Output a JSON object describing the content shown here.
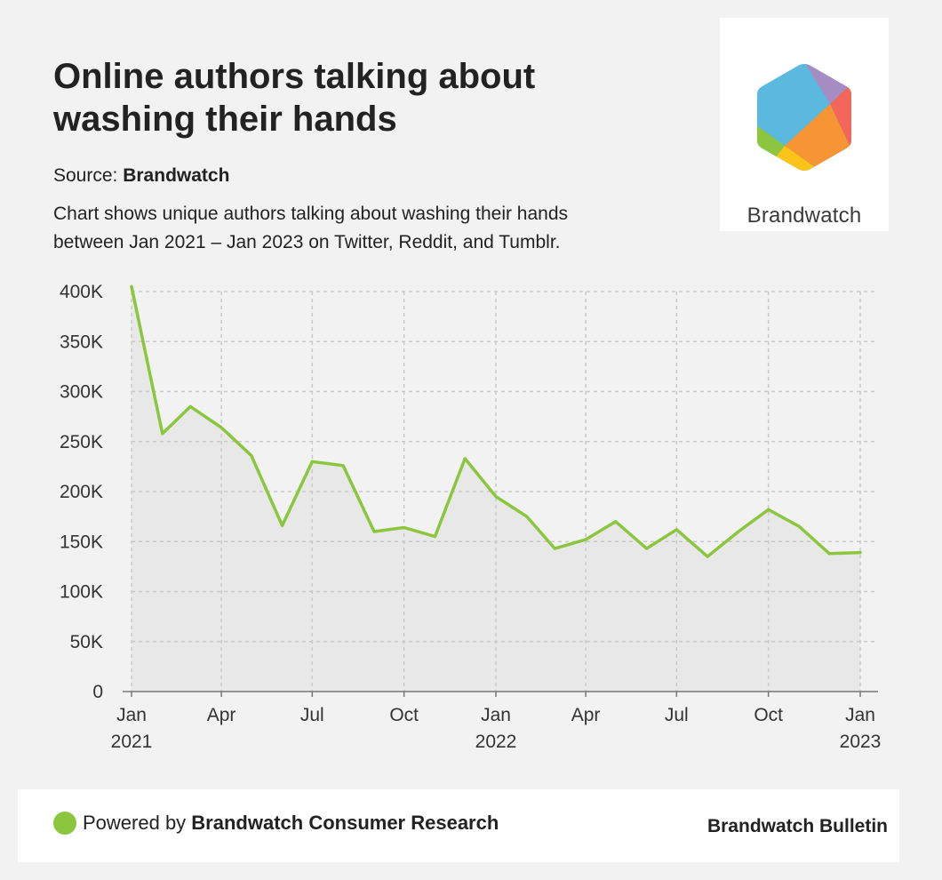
{
  "header": {
    "title_line1": "Online authors talking about",
    "title_line2": "washing their hands",
    "source_prefix": "Source: ",
    "source_name": "Brandwatch",
    "description_line1": "Chart shows unique authors talking about washing their hands",
    "description_line2": "between Jan 2021 – Jan 2023 on Twitter, Reddit, and Tumblr."
  },
  "logo": {
    "wordmark": "Brandwatch",
    "colors": [
      "#5bb8de",
      "#a58dc4",
      "#f2665b",
      "#f79433",
      "#fcc419",
      "#8cc63f"
    ]
  },
  "chart_data": {
    "type": "area",
    "y_ticks": [
      "400K",
      "350K",
      "300K",
      "250K",
      "200K",
      "150K",
      "100K",
      "50K",
      "0"
    ],
    "y_tick_values": [
      400000,
      350000,
      300000,
      250000,
      200000,
      150000,
      100000,
      50000,
      0
    ],
    "ylim": [
      0,
      400000
    ],
    "x_ticks": [
      {
        "month": "Jan",
        "year": "2021"
      },
      {
        "month": "Apr",
        "year": ""
      },
      {
        "month": "Jul",
        "year": ""
      },
      {
        "month": "Oct",
        "year": ""
      },
      {
        "month": "Jan",
        "year": "2022"
      },
      {
        "month": "Apr",
        "year": ""
      },
      {
        "month": "Jul",
        "year": ""
      },
      {
        "month": "Oct",
        "year": ""
      },
      {
        "month": "Jan",
        "year": "2023"
      }
    ],
    "x_tick_dates": [
      "2021-01-01",
      "2021-04-01",
      "2021-07-01",
      "2021-10-01",
      "2022-01-01",
      "2022-04-01",
      "2022-07-01",
      "2022-10-01",
      "2023-01-01"
    ],
    "xlim": [
      "2021-01-01",
      "2023-01-01"
    ],
    "x": [
      "2021-01-01",
      "2021-02-01",
      "2021-03-01",
      "2021-04-01",
      "2021-05-01",
      "2021-06-01",
      "2021-07-01",
      "2021-08-01",
      "2021-09-01",
      "2021-10-01",
      "2021-11-01",
      "2021-12-01",
      "2022-01-01",
      "2022-02-01",
      "2022-03-01",
      "2022-04-01",
      "2022-05-01",
      "2022-06-01",
      "2022-07-01",
      "2022-08-01",
      "2022-09-01",
      "2022-10-01",
      "2022-11-01",
      "2022-12-01",
      "2023-01-01"
    ],
    "values": [
      405000,
      258000,
      285000,
      264000,
      236000,
      166000,
      230000,
      226000,
      160000,
      164000,
      155000,
      233000,
      195000,
      175000,
      143000,
      152000,
      170000,
      143000,
      162000,
      135000,
      160000,
      182000,
      165000,
      138000,
      139000
    ],
    "grid": true,
    "line_color": "#8cc63f",
    "fill_color": "#e8e8e8",
    "grid_color": "#c9c9c9",
    "axis_color": "#777777"
  },
  "footer": {
    "powered_prefix": "Powered by ",
    "powered_name": "Brandwatch Consumer Research",
    "bulletin": "Brandwatch Bulletin"
  }
}
